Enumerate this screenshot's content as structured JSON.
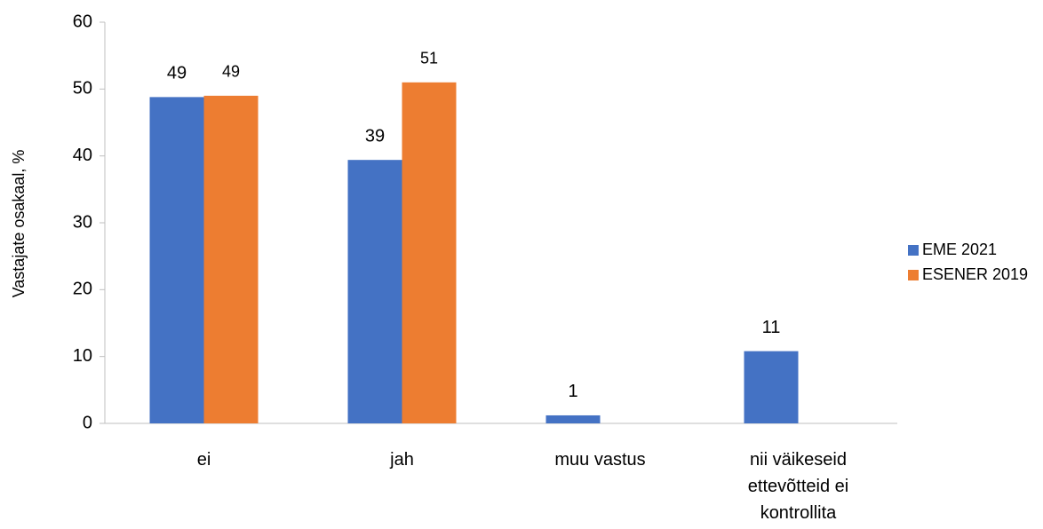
{
  "chart_data": {
    "type": "bar",
    "y_label": "Vastajate osakaal, %",
    "categories": [
      "ei",
      "jah",
      "muu vastus",
      "nii väikeseid ettevõtteid ei kontrollita"
    ],
    "series": [
      {
        "name": "EME 2021",
        "color": "#4472c4",
        "values": [
          48.8,
          39.4,
          1.2,
          10.8
        ],
        "value_labels": [
          "49",
          "39",
          "1",
          "11"
        ]
      },
      {
        "name": "ESENER 2019",
        "color": "#ed7d31",
        "values": [
          49,
          51,
          null,
          null
        ]
      }
    ],
    "ylim": [
      0,
      60
    ],
    "yticks": [
      0,
      10,
      20,
      30,
      40,
      50,
      60
    ],
    "legend": "right"
  }
}
